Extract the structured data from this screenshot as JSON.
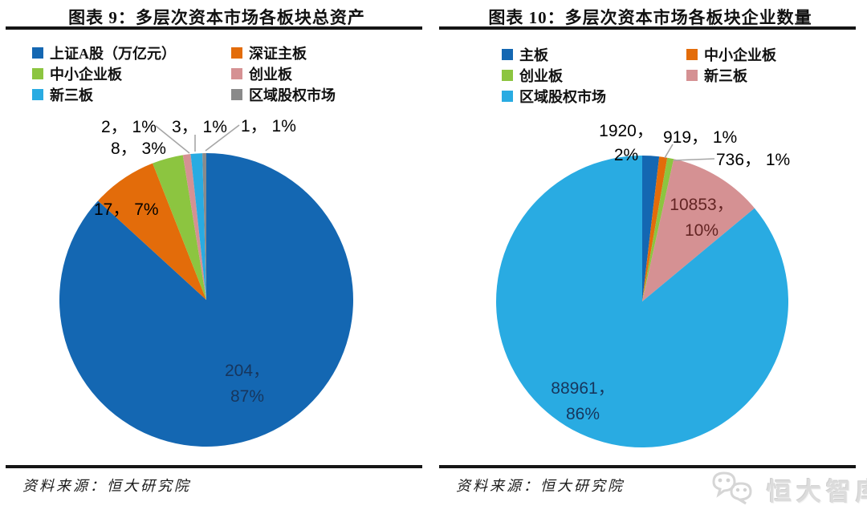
{
  "watermark": {
    "text": "恒大智库",
    "icon": "wechat-chat-bubbles-icon"
  },
  "chart_data": [
    {
      "type": "pie",
      "title": "图表 9：多层次资本市场各板块总资产",
      "source": "资料来源：恒大研究院",
      "legend_position": "top",
      "direction": "clockwise",
      "start_angle_deg": 0,
      "categories": [
        "上证A股（万亿元）",
        "深证主板",
        "中小企业板",
        "创业板",
        "新三板",
        "区域股权市场"
      ],
      "values": [
        204,
        17,
        8,
        2,
        3,
        1
      ],
      "percents": [
        "87%",
        "7%",
        "3%",
        "1%",
        "1%",
        "1%"
      ],
      "colors": [
        "#1467B2",
        "#E36C0A",
        "#8CC540",
        "#D59193",
        "#29ABE2",
        "#8A8A8A"
      ],
      "slice_labels": [
        {
          "lines": [
            "204，",
            "87%"
          ]
        },
        {
          "lines": [
            "17， 7%"
          ]
        },
        {
          "lines": [
            "8， 3%"
          ]
        },
        {
          "lines": [
            "2， 1%"
          ]
        },
        {
          "lines": [
            "3， 1%"
          ]
        },
        {
          "lines": [
            "1， 1%"
          ]
        }
      ]
    },
    {
      "type": "pie",
      "title": "图表 10：多层次资本市场各板块企业数量",
      "source": "资料来源：恒大研究院",
      "legend_position": "top",
      "direction": "clockwise",
      "start_angle_deg": 0,
      "categories": [
        "主板",
        "中小企业板",
        "创业板",
        "新三板",
        "区域股权市场"
      ],
      "values": [
        1920,
        919,
        736,
        10853,
        88961
      ],
      "percents": [
        "2%",
        "1%",
        "1%",
        "10%",
        "86%"
      ],
      "colors": [
        "#1467B2",
        "#E36C0A",
        "#8CC540",
        "#D59193",
        "#29ABE2"
      ],
      "slice_labels": [
        {
          "lines": [
            "1920，",
            "2%"
          ]
        },
        {
          "lines": [
            "919， 1%"
          ]
        },
        {
          "lines": [
            "736， 1%"
          ]
        },
        {
          "lines": [
            "10853，",
            "10%"
          ]
        },
        {
          "lines": [
            "88961，",
            "86%"
          ]
        }
      ]
    }
  ]
}
